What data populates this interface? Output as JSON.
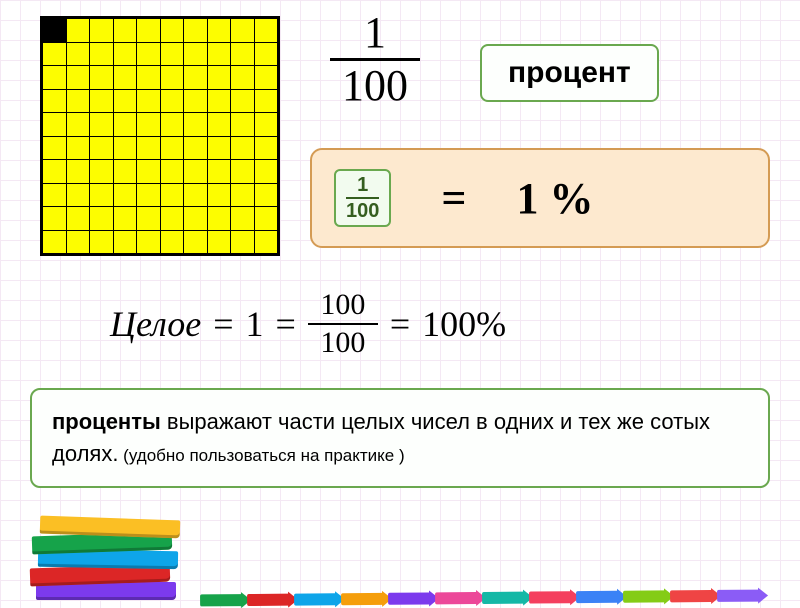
{
  "grid": {
    "rows": 10,
    "cols": 10,
    "cell_color": "#fdfd00",
    "filled_color": "#000000",
    "border_color": "#000000",
    "filled_cells": [
      [
        0,
        0
      ]
    ]
  },
  "big_fraction": {
    "numerator": "1",
    "denominator": "100"
  },
  "badge": {
    "text": "процент",
    "bg": "#fdfffd",
    "border": "#6aa84f",
    "fontsize": 30
  },
  "eq_box": {
    "bg": "#fde9cf",
    "border": "#d49b54",
    "small_fraction": {
      "numerator": "1",
      "denominator": "100",
      "color": "#355e1f",
      "bg": "#f2fbef"
    },
    "equals": "=",
    "result": "1 %"
  },
  "celoe": {
    "word": "Целое",
    "eq1": "=",
    "one": "1",
    "eq2": "=",
    "fraction": {
      "numerator": "100",
      "denominator": "100"
    },
    "eq3": "=",
    "result": "100%"
  },
  "definition": {
    "lead": "проценты",
    "body": " выражают части целых чисел в одних и тех же сотых долях.",
    "tail": " (удобно пользоваться на практике )",
    "bg": "#fdfffd",
    "border": "#6aa84f"
  },
  "books_colors": [
    "#7c3aed",
    "#dc2626",
    "#0ea5e9",
    "#16a34a",
    "#fbbf24"
  ],
  "pencil_colors": [
    "#16a34a",
    "#dc2626",
    "#0ea5e9",
    "#f59e0b",
    "#7c3aed",
    "#ec4899",
    "#14b8a6",
    "#f43f5e",
    "#3b82f6",
    "#84cc16",
    "#ef4444",
    "#8b5cf6"
  ]
}
